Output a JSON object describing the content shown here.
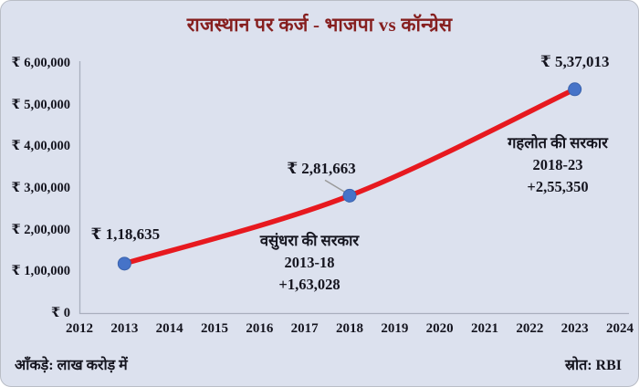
{
  "title": "राजस्थान पर कर्ज - भाजपा vs कॉन्ग्रेस",
  "footer": {
    "left": "आँकड़े: लाख करोड़ में",
    "right": "स्रोत: RBI"
  },
  "colors": {
    "background": "#dce1ee",
    "title": "#861f1f",
    "line": "#e7191f",
    "marker": "#4673c8",
    "text": "#15151f",
    "axis": "#a9afbe",
    "leader": "#999999"
  },
  "chart_data": {
    "type": "line",
    "title": "राजस्थान पर कर्ज - भाजपा vs कॉन्ग्रेस",
    "x": [
      2013,
      2018,
      2023
    ],
    "values": [
      118635,
      281663,
      537013
    ],
    "point_labels": [
      "₹ 1,18,635",
      "₹ 2,81,663",
      "₹ 5,37,013"
    ],
    "x_ticks": [
      "2012",
      "2013",
      "2014",
      "2015",
      "2016",
      "2017",
      "2018",
      "2019",
      "2020",
      "2021",
      "2022",
      "2023",
      "2024"
    ],
    "y_ticks": [
      {
        "value": 600000,
        "label": "₹ 6,00,000"
      },
      {
        "value": 500000,
        "label": "₹ 5,00,000"
      },
      {
        "value": 400000,
        "label": "₹ 4,00,000"
      },
      {
        "value": 300000,
        "label": "₹ 3,00,000"
      },
      {
        "value": 200000,
        "label": "₹ 2,00,000"
      },
      {
        "value": 100000,
        "label": "₹ 1,00,000"
      },
      {
        "value": 0,
        "label": "₹ 0"
      }
    ],
    "xlim": [
      2012,
      2024
    ],
    "ylim": [
      0,
      600000
    ],
    "grid": false,
    "legend": false,
    "series_color": "#e7191f",
    "marker_color": "#4673c8",
    "annotations": [
      {
        "lines": [
          "वसुंधरा की सरकार",
          "2013-18",
          "+1,63,028"
        ]
      },
      {
        "lines": [
          "गहलोत की सरकार",
          "2018-23",
          "+2,55,350"
        ]
      }
    ],
    "units_note": "आँकड़े: लाख करोड़ में",
    "source": "स्रोत: RBI"
  }
}
